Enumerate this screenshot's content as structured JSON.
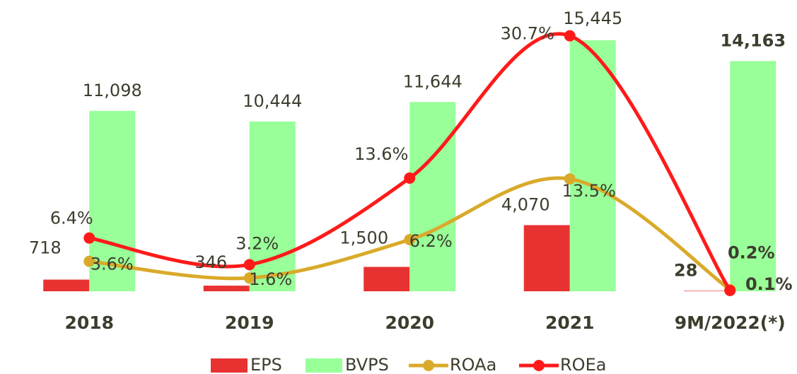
{
  "chart_data": {
    "type": "bar-line",
    "categories": [
      "2018",
      "2019",
      "2020",
      "2021",
      "9M/2022(*)"
    ],
    "ylim": [
      0,
      17920
    ],
    "y2lim": [
      0,
      35
    ],
    "legend": "bottom",
    "series": [
      {
        "name": "EPS",
        "type": "bar",
        "color": "#e83232",
        "values": [
          718,
          346,
          1500,
          4070,
          28
        ],
        "value_labels": [
          "718",
          "346",
          "1,500",
          "4,070",
          "28"
        ]
      },
      {
        "name": "BVPS",
        "type": "bar",
        "color": "#99ff99",
        "values": [
          11098,
          10444,
          11644,
          15445,
          14163
        ],
        "value_labels": [
          "11,098",
          "10,444",
          "11,644",
          "15,445",
          "14,163"
        ]
      },
      {
        "name": "ROAa",
        "type": "line",
        "axis": "y2",
        "color": "#d9aa2a",
        "values": [
          3.6,
          1.6,
          6.2,
          13.5,
          0.2
        ],
        "value_labels": [
          "3.6%",
          "1.6%",
          "6.2%",
          "13.5%",
          "0.2%"
        ]
      },
      {
        "name": "ROEa",
        "type": "line",
        "axis": "y2",
        "color": "#ff1a1a",
        "values": [
          6.4,
          3.2,
          13.6,
          30.7,
          0.1
        ],
        "value_labels": [
          "6.4%",
          "3.2%",
          "13.6%",
          "30.7%",
          "0.1%"
        ]
      }
    ]
  }
}
